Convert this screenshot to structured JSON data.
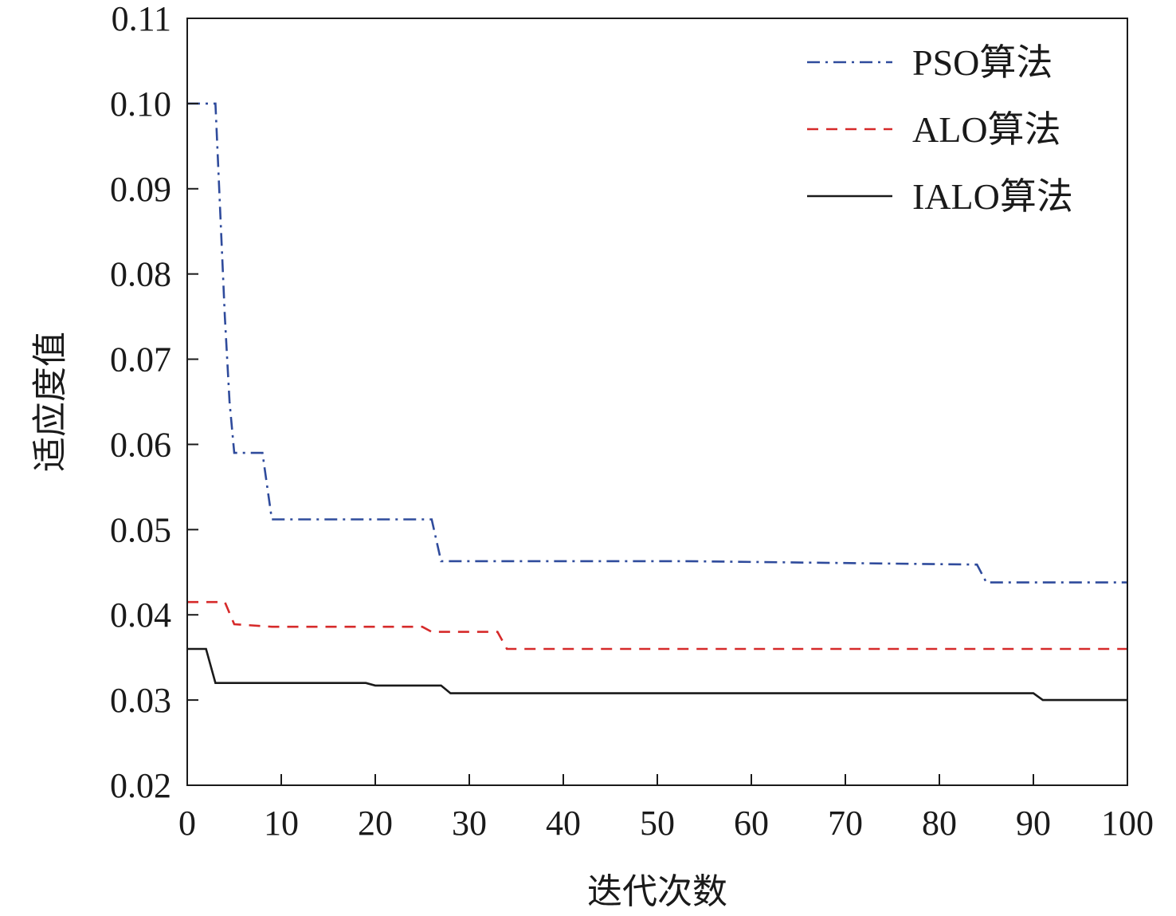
{
  "chart_data": {
    "type": "line",
    "title": "",
    "xlabel": "迭代次数",
    "ylabel": "适应度值",
    "xlim": [
      0,
      100
    ],
    "ylim": [
      0.02,
      0.11
    ],
    "xticks": [
      0,
      10,
      20,
      30,
      40,
      50,
      60,
      70,
      80,
      90,
      100
    ],
    "xtick_labels": [
      "0",
      "10",
      "20",
      "30",
      "40",
      "50",
      "60",
      "70",
      "80",
      "90",
      "100"
    ],
    "yticks": [
      0.02,
      0.03,
      0.04,
      0.05,
      0.06,
      0.07,
      0.08,
      0.09,
      0.1,
      0.11
    ],
    "ytick_labels": [
      "0.02",
      "0.03",
      "0.04",
      "0.05",
      "0.06",
      "0.07",
      "0.08",
      "0.09",
      "0.10",
      "0.11"
    ],
    "grid": false,
    "legend_position": "top-right",
    "series": [
      {
        "name": "PSO算法",
        "color": "#2f4b9c",
        "dash": "dash-dot",
        "x": [
          0,
          3,
          4,
          4.5,
          5,
          8,
          9,
          26,
          27,
          53,
          84,
          85,
          100
        ],
        "y": [
          0.1,
          0.1,
          0.075,
          0.065,
          0.059,
          0.059,
          0.0512,
          0.0512,
          0.0463,
          0.0463,
          0.0459,
          0.0438,
          0.0438
        ]
      },
      {
        "name": "ALO算法",
        "color": "#d62a2a",
        "dash": "dashed",
        "x": [
          0,
          4,
          5,
          9,
          25,
          26,
          33,
          34,
          100
        ],
        "y": [
          0.0415,
          0.0415,
          0.0389,
          0.0386,
          0.0386,
          0.038,
          0.038,
          0.036,
          0.036
        ]
      },
      {
        "name": "IALO算法",
        "color": "#1a1a1a",
        "dash": "solid",
        "x": [
          0,
          2,
          3,
          19,
          20,
          27,
          28,
          90,
          91,
          100
        ],
        "y": [
          0.036,
          0.036,
          0.032,
          0.032,
          0.0317,
          0.0317,
          0.0308,
          0.0308,
          0.03,
          0.03
        ]
      }
    ]
  }
}
